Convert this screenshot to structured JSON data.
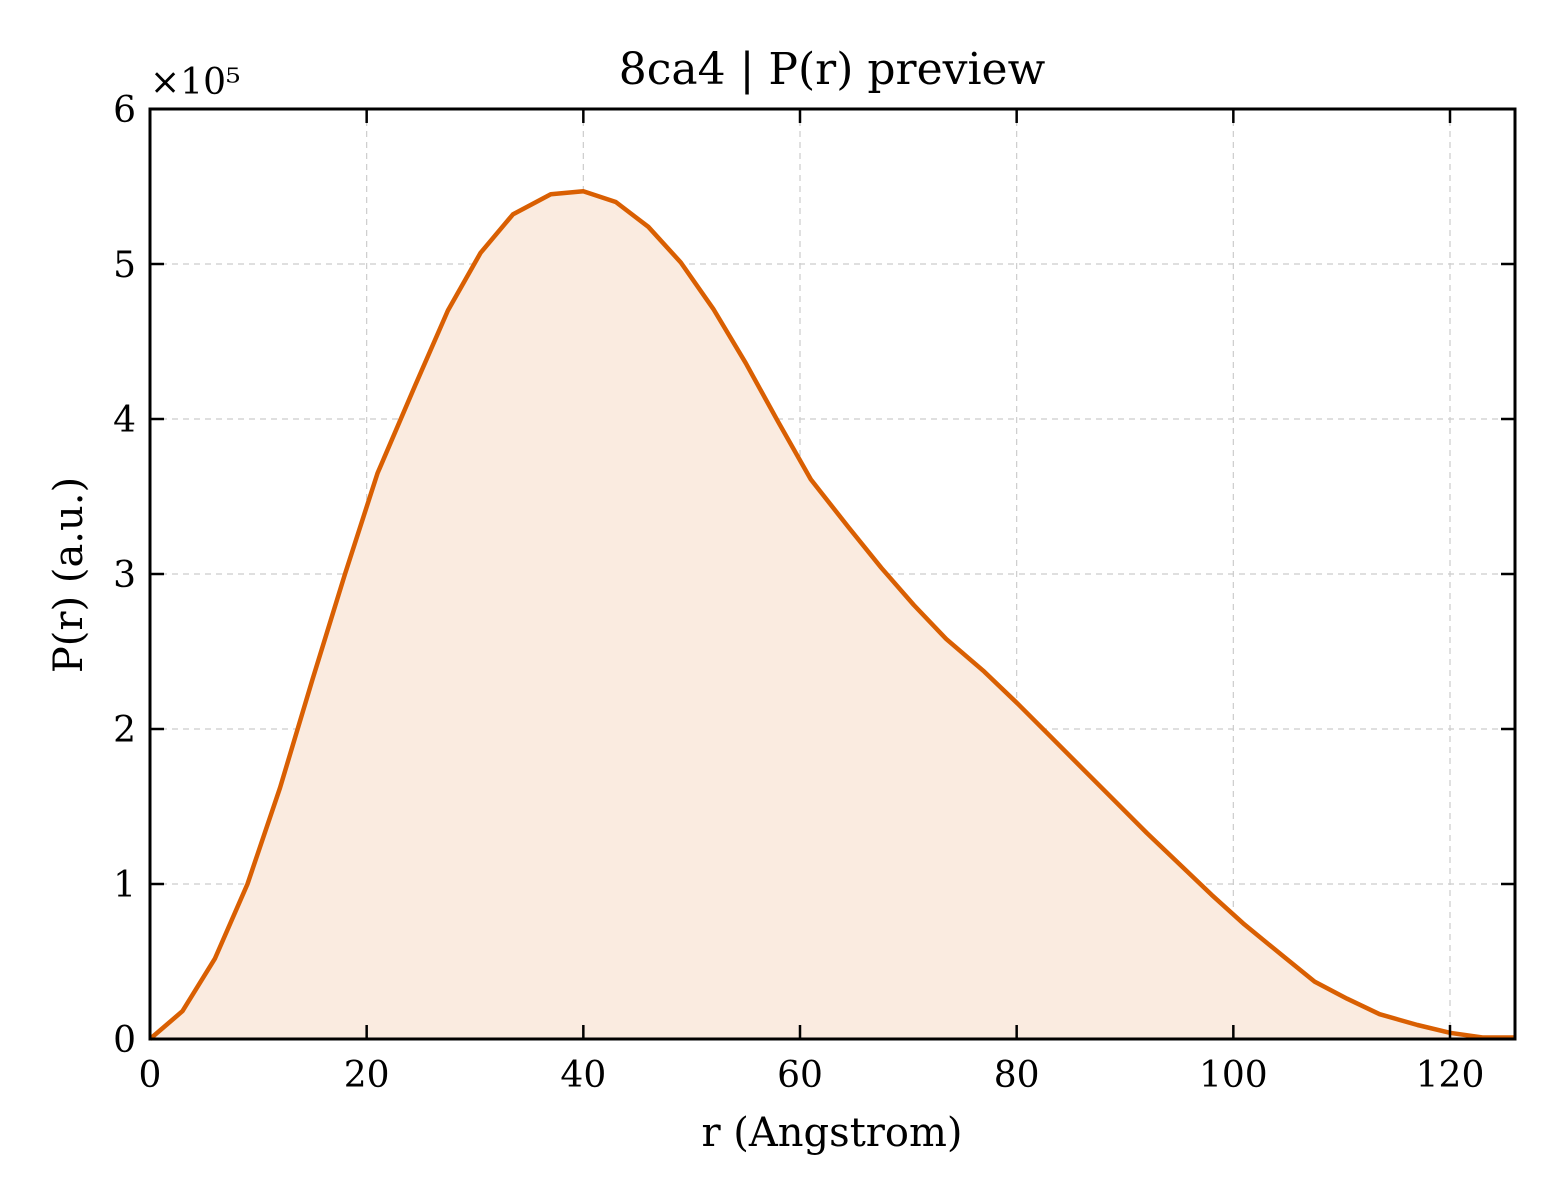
{
  "chart_data": {
    "type": "area",
    "title": "8ca4 | P(r) preview",
    "xlabel": "r (Angstrom)",
    "ylabel": "P(r) (a.u.)",
    "y_multiplier_label": "×10⁵",
    "xlim": [
      0,
      126
    ],
    "ylim": [
      0,
      6
    ],
    "x_ticks": [
      0,
      20,
      40,
      60,
      80,
      100,
      120
    ],
    "y_ticks": [
      0,
      1,
      2,
      3,
      4,
      5,
      6
    ],
    "grid": true,
    "line_color": "#d95f02",
    "fill_color": "#faebe0",
    "x": [
      0,
      3,
      6,
      9,
      12,
      15,
      18,
      21,
      24.5,
      27.5,
      30.5,
      33.5,
      37,
      40,
      43,
      46,
      49,
      52,
      55,
      58,
      61,
      64.5,
      67.5,
      70.5,
      73.5,
      77,
      80,
      83,
      86,
      89,
      92,
      95,
      98,
      101,
      104.5,
      107.5,
      110.5,
      113.5,
      117,
      120,
      123,
      126
    ],
    "y": [
      0.0,
      0.18,
      0.52,
      1.0,
      1.62,
      2.32,
      3.0,
      3.65,
      4.22,
      4.7,
      5.07,
      5.32,
      5.45,
      5.47,
      5.4,
      5.24,
      5.01,
      4.71,
      4.36,
      3.98,
      3.61,
      3.3,
      3.04,
      2.8,
      2.58,
      2.37,
      2.17,
      1.96,
      1.75,
      1.54,
      1.33,
      1.13,
      0.93,
      0.74,
      0.54,
      0.37,
      0.26,
      0.16,
      0.09,
      0.04,
      0.01,
      0.01
    ]
  }
}
